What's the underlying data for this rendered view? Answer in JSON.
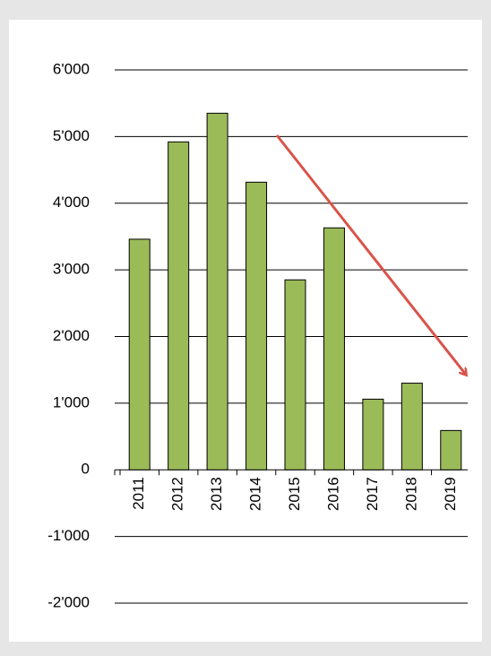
{
  "chart_data": {
    "type": "bar",
    "categories": [
      "2011",
      "2012",
      "2013",
      "2014",
      "2015",
      "2016",
      "2017",
      "2018",
      "2019"
    ],
    "values": [
      3460,
      4920,
      5350,
      4315,
      2850,
      3630,
      1060,
      1300,
      590
    ],
    "color": "#9bbb59",
    "ylim": [
      -2000,
      6000
    ],
    "yticks": [
      {
        "value": -2000,
        "label": "-2'000"
      },
      {
        "value": -1000,
        "label": "-1'000"
      },
      0,
      {
        "value": 1000,
        "label": "1'000"
      },
      {
        "value": 2000,
        "label": "2'000"
      },
      {
        "value": 3000,
        "label": "3'000"
      },
      {
        "value": 4000,
        "label": "4'000"
      },
      {
        "value": 5000,
        "label": "5'000"
      },
      {
        "value": 6000,
        "label": "6'000"
      }
    ],
    "grid": true
  }
}
